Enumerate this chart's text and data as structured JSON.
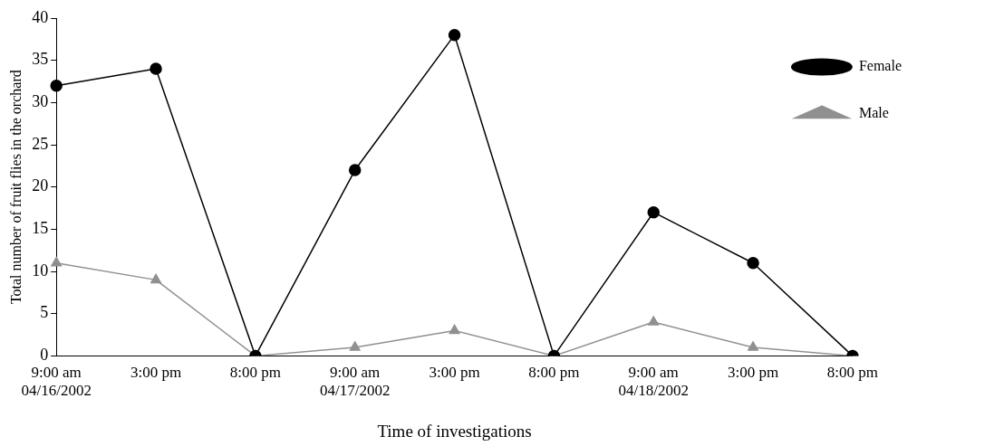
{
  "chart_data": {
    "type": "line",
    "xlabel": "Time of investigations",
    "ylabel": "Total number of fruit flies in the orchard",
    "categories": [
      "9:00 am\n04/16/2002",
      "3:00 pm",
      "8:00 pm",
      "9:00 am\n04/17/2002",
      "3:00 pm",
      "8:00 pm",
      "9:00 am\n04/18/2002",
      "3:00 pm",
      "8:00 pm"
    ],
    "series": [
      {
        "name": "Female",
        "color": "#000000",
        "marker": "circle",
        "values": [
          32,
          34,
          0,
          22,
          38,
          0,
          17,
          11,
          0
        ]
      },
      {
        "name": "Male",
        "color": "#909090",
        "marker": "triangle",
        "values": [
          11,
          9,
          0,
          1,
          3,
          0,
          4,
          1,
          0
        ]
      }
    ],
    "ylim": [
      0,
      40
    ],
    "yticks": [
      0,
      5,
      10,
      15,
      20,
      25,
      30,
      35,
      40
    ],
    "grid": false,
    "legend": "top right",
    "line_style": "solid"
  }
}
